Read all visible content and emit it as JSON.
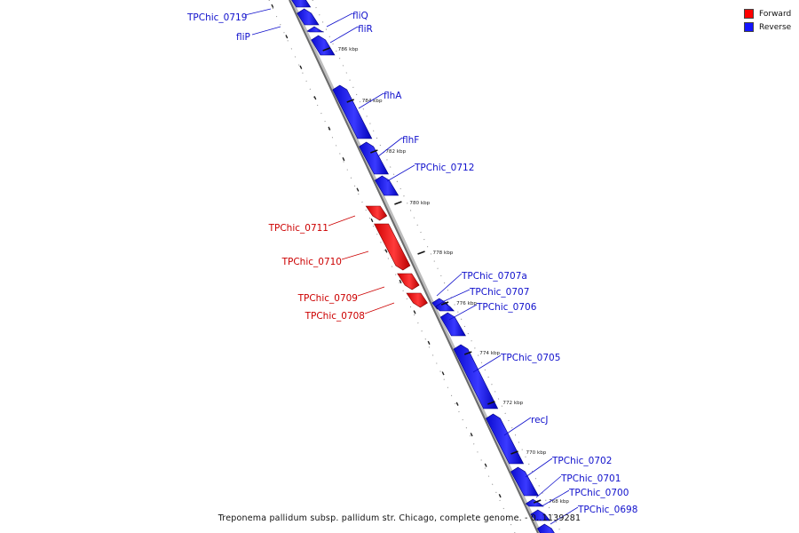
{
  "legend": {
    "forward": {
      "label": "Forward",
      "color": "#ff0000"
    },
    "reverse": {
      "label": "Reverse",
      "color": "#1414ff"
    }
  },
  "caption": "Treponema pallidum subsp. pallidum str. Chicago, complete genome. - 0..1139281",
  "ticks": [
    {
      "label": "786 kbp",
      "kbp": 786
    },
    {
      "label": "784 kbp",
      "kbp": 784
    },
    {
      "label": "782 kbp",
      "kbp": 782
    },
    {
      "label": "780 kbp",
      "kbp": 780
    },
    {
      "label": "778 kbp",
      "kbp": 778
    },
    {
      "label": "776 kbp",
      "kbp": 776
    },
    {
      "label": "774 kbp",
      "kbp": 774
    },
    {
      "label": "772 kbp",
      "kbp": 772
    },
    {
      "label": "770 kbp",
      "kbp": 770
    },
    {
      "label": "768 kbp",
      "kbp": 768
    }
  ],
  "genes": [
    {
      "name": "TPChic_0719",
      "strand": "reverse"
    },
    {
      "name": "fliQ",
      "strand": "reverse"
    },
    {
      "name": "fliP",
      "strand": "reverse"
    },
    {
      "name": "fliR",
      "strand": "reverse"
    },
    {
      "name": "flhA",
      "strand": "reverse"
    },
    {
      "name": "flhF",
      "strand": "reverse"
    },
    {
      "name": "TPChic_0712",
      "strand": "reverse"
    },
    {
      "name": "TPChic_0711",
      "strand": "forward"
    },
    {
      "name": "TPChic_0710",
      "strand": "forward"
    },
    {
      "name": "TPChic_0709",
      "strand": "forward"
    },
    {
      "name": "TPChic_0708",
      "strand": "forward"
    },
    {
      "name": "TPChic_0707a",
      "strand": "reverse"
    },
    {
      "name": "TPChic_0707",
      "strand": "reverse"
    },
    {
      "name": "TPChic_0706",
      "strand": "reverse"
    },
    {
      "name": "TPChic_0705",
      "strand": "reverse"
    },
    {
      "name": "recJ",
      "strand": "reverse"
    },
    {
      "name": "TPChic_0702",
      "strand": "reverse"
    },
    {
      "name": "TPChic_0701",
      "strand": "reverse"
    },
    {
      "name": "TPChic_0700",
      "strand": "reverse"
    },
    {
      "name": "TPChic_0698",
      "strand": "reverse"
    }
  ]
}
